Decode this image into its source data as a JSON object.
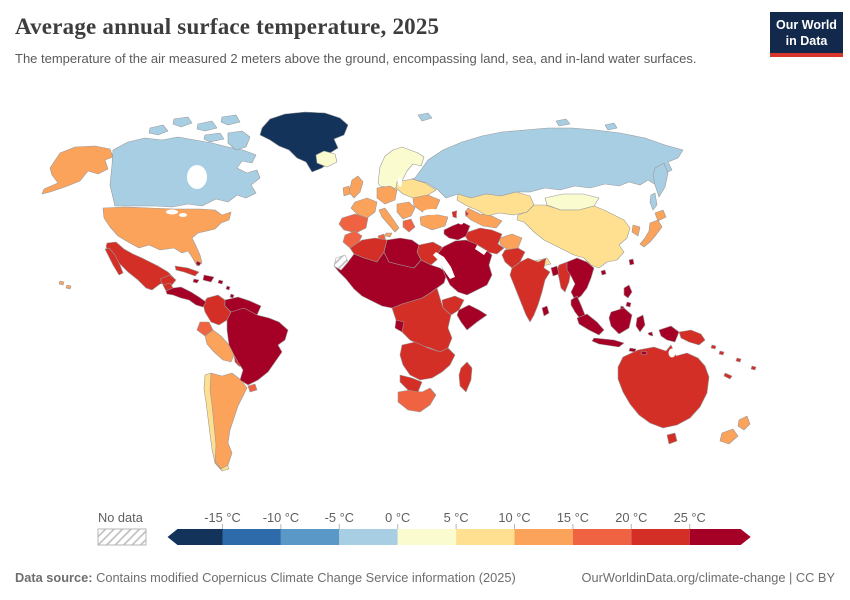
{
  "header": {
    "title": "Average annual surface temperature, 2025",
    "subtitle": "The temperature of the air measured 2 meters above the ground, encompassing land, sea, and in-land water surfaces.",
    "logo": {
      "line1": "Our World",
      "line2": "in Data",
      "bg": "#12294b",
      "accent": "#d8352a"
    }
  },
  "footer": {
    "source_label": "Data source:",
    "source_text": " Contains modified Copernicus Climate Change Service information (2025)",
    "link_text": "OurWorldinData.org/climate-change | CC BY"
  },
  "map": {
    "border_color": "#9a9a9a",
    "ocean_color": "#ffffff"
  },
  "chart_data": {
    "type": "choropleth_map",
    "title": "Average annual surface temperature, 2025",
    "year": "2025",
    "unit": "°C",
    "legend": {
      "no_data_label": "No data",
      "ticks": [
        "-15 °C",
        "-10 °C",
        "-5 °C",
        "0 °C",
        "5 °C",
        "10 °C",
        "15 °C",
        "20 °C",
        "25 °C"
      ],
      "bands": [
        {
          "label": "< -15 °C",
          "color": "#13335a"
        },
        {
          "label": "-15 to -10 °C",
          "color": "#2d6bab"
        },
        {
          "label": "-10 to -5 °C",
          "color": "#5a99c7"
        },
        {
          "label": "-5 to 0 °C",
          "color": "#a8cee4"
        },
        {
          "label": "0 to 5 °C",
          "color": "#fbfbd0"
        },
        {
          "label": "5 to 10 °C",
          "color": "#fee090"
        },
        {
          "label": "10 to 15 °C",
          "color": "#fba25b"
        },
        {
          "label": "15 to 20 °C",
          "color": "#ef6343"
        },
        {
          "label": "20 to 25 °C",
          "color": "#d32f27"
        },
        {
          "label": "> 25 °C",
          "color": "#a50026"
        }
      ],
      "no_data_pattern": "diagonal-hatch"
    },
    "regions": [
      {
        "id": "greenland",
        "name": "Greenland",
        "band": "< -15 °C"
      },
      {
        "id": "canada",
        "name": "Canada",
        "band": "-5 to 0 °C"
      },
      {
        "id": "canadian-arctic",
        "name": "Canadian Arctic Archipelago",
        "band": "-5 to 0 °C"
      },
      {
        "id": "arctic-islands-eurasia",
        "name": "Svalbard & Arctic islands",
        "band": "-5 to 0 °C"
      },
      {
        "id": "russia",
        "name": "Russia",
        "band": "-5 to 0 °C"
      },
      {
        "id": "sakhalin",
        "name": "Sakhalin",
        "band": "-5 to 0 °C"
      },
      {
        "id": "iceland",
        "name": "Iceland",
        "band": "0 to 5 °C"
      },
      {
        "id": "scandinavia",
        "name": "Norway, Sweden & Finland",
        "band": "0 to 5 °C"
      },
      {
        "id": "mongolia",
        "name": "Mongolia",
        "band": "0 to 5 °C"
      },
      {
        "id": "kyrgyzstan",
        "name": "Kyrgyzstan",
        "band": "0 to 5 °C"
      },
      {
        "id": "kazakhstan",
        "name": "Kazakhstan",
        "band": "5 to 10 °C"
      },
      {
        "id": "china",
        "name": "China",
        "band": "5 to 10 °C"
      },
      {
        "id": "eastern-europe",
        "name": "Poland & Baltics",
        "band": "5 to 10 °C"
      },
      {
        "id": "chile",
        "name": "Chile",
        "band": "5 to 10 °C"
      },
      {
        "id": "nepal",
        "name": "Nepal",
        "band": "5 to 10 °C"
      },
      {
        "id": "lesotho",
        "name": "Lesotho",
        "band": "5 to 10 °C"
      },
      {
        "id": "united-states",
        "name": "United States",
        "band": "10 to 15 °C"
      },
      {
        "id": "uk",
        "name": "United Kingdom",
        "band": "10 to 15 °C"
      },
      {
        "id": "ireland",
        "name": "Ireland",
        "band": "10 to 15 °C"
      },
      {
        "id": "france",
        "name": "France",
        "band": "10 to 15 °C"
      },
      {
        "id": "central-europe",
        "name": "Central Europe",
        "band": "10 to 15 °C"
      },
      {
        "id": "ukraine",
        "name": "Ukraine",
        "band": "10 to 15 °C"
      },
      {
        "id": "italy",
        "name": "Italy",
        "band": "10 to 15 °C"
      },
      {
        "id": "balkans",
        "name": "Balkans",
        "band": "10 to 15 °C"
      },
      {
        "id": "turkey",
        "name": "Turkey",
        "band": "10 to 15 °C"
      },
      {
        "id": "japan",
        "name": "Japan",
        "band": "10 to 15 °C"
      },
      {
        "id": "south-korea",
        "name": "South Korea",
        "band": "10 to 15 °C"
      },
      {
        "id": "central-asia",
        "name": "Central Asia",
        "band": "10 to 15 °C"
      },
      {
        "id": "afghanistan",
        "name": "Afghanistan",
        "band": "10 to 15 °C"
      },
      {
        "id": "new-zealand",
        "name": "New Zealand",
        "band": "10 to 15 °C"
      },
      {
        "id": "argentina",
        "name": "Argentina",
        "band": "10 to 15 °C"
      },
      {
        "id": "peru",
        "name": "Peru",
        "band": "10 to 15 °C"
      },
      {
        "id": "iberia",
        "name": "Spain & Portugal",
        "band": "15 to 20 °C"
      },
      {
        "id": "greece",
        "name": "Greece",
        "band": "15 to 20 °C"
      },
      {
        "id": "morocco",
        "name": "Morocco",
        "band": "15 to 20 °C"
      },
      {
        "id": "tunisia",
        "name": "Tunisia",
        "band": "15 to 20 °C"
      },
      {
        "id": "south-africa",
        "name": "South Africa",
        "band": "15 to 20 °C"
      },
      {
        "id": "ecuador",
        "name": "Ecuador",
        "band": "15 to 20 °C"
      },
      {
        "id": "uruguay",
        "name": "Uruguay",
        "band": "15 to 20 °C"
      },
      {
        "id": "mexico",
        "name": "Mexico",
        "band": "20 to 25 °C"
      },
      {
        "id": "cuba",
        "name": "Cuba",
        "band": "20 to 25 °C"
      },
      {
        "id": "guatemala",
        "name": "Guatemala",
        "band": "20 to 25 °C"
      },
      {
        "id": "colombia",
        "name": "Colombia",
        "band": "20 to 25 °C"
      },
      {
        "id": "bolivia",
        "name": "Bolivia",
        "band": "20 to 25 °C"
      },
      {
        "id": "paraguay",
        "name": "Paraguay",
        "band": "20 to 25 °C"
      },
      {
        "id": "algeria",
        "name": "Algeria",
        "band": "20 to 25 °C"
      },
      {
        "id": "egypt",
        "name": "Egypt",
        "band": "20 to 25 °C"
      },
      {
        "id": "caucasus",
        "name": "Caucasus",
        "band": "20 to 25 °C"
      },
      {
        "id": "ethiopia",
        "name": "Ethiopia",
        "band": "20 to 25 °C"
      },
      {
        "id": "central-africa",
        "name": "Central Africa",
        "band": "20 to 25 °C"
      },
      {
        "id": "southern-africa",
        "name": "Southern Africa",
        "band": "20 to 25 °C"
      },
      {
        "id": "madagascar",
        "name": "Madagascar",
        "band": "20 to 25 °C"
      },
      {
        "id": "india",
        "name": "India",
        "band": "20 to 25 °C"
      },
      {
        "id": "pakistan",
        "name": "Pakistan",
        "band": "20 to 25 °C"
      },
      {
        "id": "iran",
        "name": "Iran",
        "band": "20 to 25 °C"
      },
      {
        "id": "myanmar",
        "name": "Myanmar",
        "band": "20 to 25 °C"
      },
      {
        "id": "australia",
        "name": "Australia",
        "band": "20 to 25 °C"
      },
      {
        "id": "papua-new-guinea",
        "name": "Papua New Guinea",
        "band": "20 to 25 °C"
      },
      {
        "id": "solomon-islands",
        "name": "Solomon Islands",
        "band": "20 to 25 °C"
      },
      {
        "id": "fiji",
        "name": "Fiji & Vanuatu",
        "band": "20 to 25 °C"
      },
      {
        "id": "new-caledonia",
        "name": "New Caledonia",
        "band": "20 to 25 °C"
      },
      {
        "id": "venezuela-guyanas",
        "name": "Venezuela & Guianas",
        "band": "> 25 °C"
      },
      {
        "id": "brazil",
        "name": "Brazil",
        "band": "> 25 °C"
      },
      {
        "id": "central-america",
        "name": "Central America",
        "band": "> 25 °C"
      },
      {
        "id": "hispaniola",
        "name": "Hispaniola",
        "band": "> 25 °C"
      },
      {
        "id": "jamaica",
        "name": "Jamaica",
        "band": "> 25 °C"
      },
      {
        "id": "lesser-antilles",
        "name": "Lesser Antilles",
        "band": "> 25 °C"
      },
      {
        "id": "bahamas",
        "name": "Bahamas",
        "band": "> 25 °C"
      },
      {
        "id": "sahel-west-africa",
        "name": "Sahara, Sahel & West Africa",
        "band": "> 25 °C"
      },
      {
        "id": "libya",
        "name": "Libya",
        "band": "> 25 °C"
      },
      {
        "id": "somalia",
        "name": "Somalia",
        "band": "> 25 °C"
      },
      {
        "id": "gabon",
        "name": "Gabon",
        "band": "> 25 °C"
      },
      {
        "id": "arabia",
        "name": "Arabian Peninsula",
        "band": "> 25 °C"
      },
      {
        "id": "levant-iraq",
        "name": "Levant & Iraq",
        "band": "> 25 °C"
      },
      {
        "id": "bangladesh",
        "name": "Bangladesh",
        "band": "> 25 °C"
      },
      {
        "id": "sri-lanka",
        "name": "Sri Lanka",
        "band": "> 25 °C"
      },
      {
        "id": "indochina",
        "name": "Thailand, Laos, Vietnam & Cambodia",
        "band": "> 25 °C"
      },
      {
        "id": "malay-peninsula",
        "name": "Malaysia",
        "band": "> 25 °C"
      },
      {
        "id": "philippines",
        "name": "Philippines",
        "band": "> 25 °C"
      },
      {
        "id": "indonesia",
        "name": "Indonesia",
        "band": "> 25 °C"
      },
      {
        "id": "taiwan",
        "name": "Taiwan",
        "band": "> 25 °C"
      },
      {
        "id": "hainan",
        "name": "Hainan",
        "band": "> 25 °C"
      },
      {
        "id": "western-sahara",
        "name": "Western Sahara",
        "band": "No data"
      }
    ]
  }
}
